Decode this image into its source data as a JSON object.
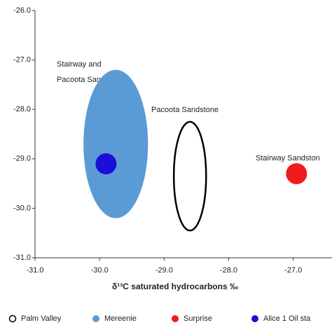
{
  "chart_data": {
    "type": "scatter",
    "xlabel": "δ¹³C saturated hydrocarbons ‰",
    "xlim": [
      -31,
      -26.4
    ],
    "xticks": [
      {
        "value": -31,
        "label": "-31.0"
      },
      {
        "value": -30,
        "label": "-30.0"
      },
      {
        "value": -29,
        "label": "-29.0"
      },
      {
        "value": -28,
        "label": "-28.0"
      },
      {
        "value": -27,
        "label": "-27.0"
      }
    ],
    "ylim": [
      -31,
      -26
    ],
    "yticks": [
      {
        "value": -26,
        "label": "-26.0"
      },
      {
        "value": -27,
        "label": "-27.0"
      },
      {
        "value": -28,
        "label": "-28.0"
      },
      {
        "value": -29,
        "label": "-29.0"
      },
      {
        "value": -30,
        "label": "-30.0"
      },
      {
        "value": -31,
        "label": "-31.0"
      }
    ],
    "series": [
      {
        "name": "Palm Valley",
        "color": "#000000",
        "filled": false,
        "x": -28.6,
        "y": -29.35,
        "rx": 0.25,
        "ry": 1.1
      },
      {
        "name": "Mereenie",
        "color": "#5b9bd5",
        "filled": true,
        "x": -29.75,
        "y": -28.7,
        "rx": 0.5,
        "ry": 1.5
      },
      {
        "name": "Surprise",
        "color": "#ee1c1c",
        "filled": true,
        "x": -26.95,
        "y": -29.3
      },
      {
        "name": "Alice 1 Oil sta",
        "color": "#1a0fd6",
        "filled": true,
        "x": -29.9,
        "y": -29.1
      }
    ],
    "annotations": [
      "Stairway and",
      "Pacoota Sandstones",
      "Pacoota Sandstone",
      "Stairway Sandston"
    ]
  }
}
